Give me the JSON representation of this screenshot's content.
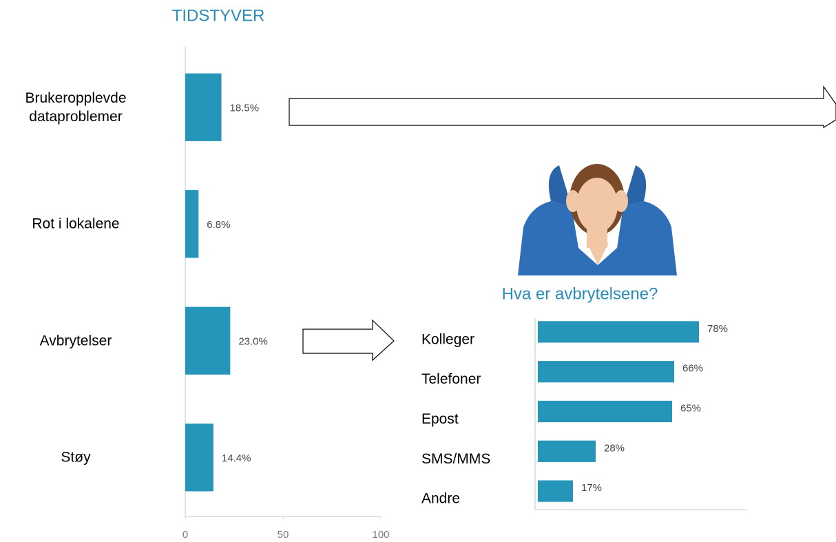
{
  "chart_data": [
    {
      "type": "bar",
      "title": "TIDSTYVER",
      "categories": [
        "Brukeropplevde dataproblemer",
        "Rot i lokalene",
        "Avbrytelser",
        "Støy"
      ],
      "values": [
        18.5,
        6.8,
        23.0,
        14.4
      ],
      "value_labels": [
        "18.5%",
        "6.8%",
        "23.0%",
        "14.4%"
      ],
      "color": "#2596b9",
      "xlim": [
        0,
        100
      ],
      "xticks": [
        0,
        50,
        100
      ]
    },
    {
      "type": "bar",
      "title": "Hva er avbrytelsene?",
      "categories": [
        "Kolleger",
        "Telefoner",
        "Epost",
        "SMS/MMS",
        "Andre"
      ],
      "values": [
        78,
        66,
        65,
        28,
        17
      ],
      "value_labels": [
        "78%",
        "66%",
        "65%",
        "28%",
        "17%"
      ],
      "color": "#2596b9",
      "xlim": [
        0,
        100
      ]
    }
  ]
}
